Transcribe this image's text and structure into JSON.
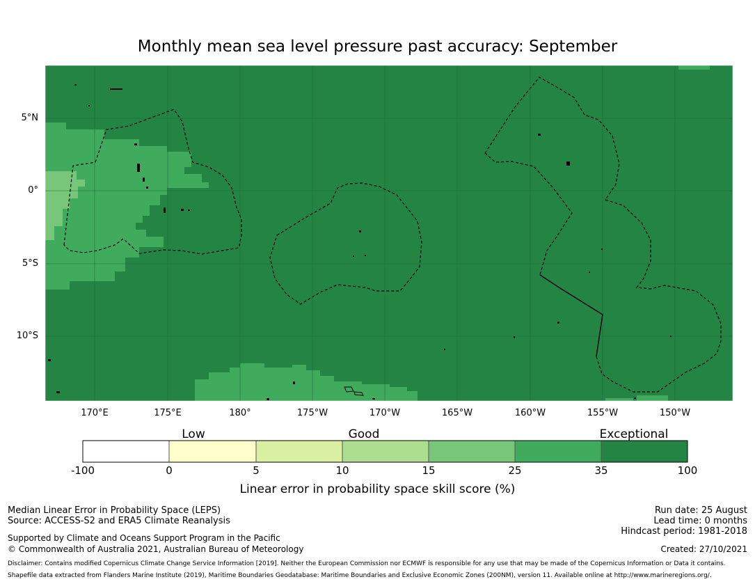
{
  "title": "Monthly mean sea level pressure past accuracy: September",
  "map": {
    "lat_labels": [
      "5°N",
      "0°",
      "5°S",
      "10°S"
    ],
    "lon_labels": [
      "170°E",
      "175°E",
      "180°",
      "175°W",
      "170°W",
      "165°W",
      "160°W",
      "155°W",
      "150°W"
    ],
    "colors": {
      "exceptional_dark": "#238443",
      "very_good": "#41ab5d",
      "good_plus": "#78c679",
      "gridline": "#1d6b36",
      "boundary": "#000000"
    }
  },
  "legend": {
    "categories": [
      "Low",
      "Good",
      "Exceptional"
    ],
    "ticks": [
      "-100",
      "0",
      "5",
      "10",
      "15",
      "25",
      "35",
      "100"
    ],
    "bins": [
      {
        "range": "-100 to 0",
        "color": "#ffffff"
      },
      {
        "range": "0 to 5",
        "color": "#ffffcc"
      },
      {
        "range": "5 to 10",
        "color": "#d9f0a3"
      },
      {
        "range": "10 to 15",
        "color": "#addd8e"
      },
      {
        "range": "15 to 25",
        "color": "#78c679"
      },
      {
        "range": "25 to 35",
        "color": "#41ab5d"
      },
      {
        "range": "35 to 100",
        "color": "#238443"
      }
    ],
    "caption": "Linear error in probability space skill score (%)"
  },
  "footer": {
    "line1": "Median Linear Error in Probability Space (LEPS)",
    "line2": "Source: ACCESS-S2 and ERA5 Climate Reanalysis",
    "line3": "Supported by Climate and Oceans Support Program in the Pacific",
    "line4": "© Commonwealth of Australia 2021, Australian Bureau of Meteorology",
    "run_date": "Run date: 25 August",
    "lead_time": "Lead time: 0 months",
    "hindcast": "Hindcast period: 1981-2018",
    "created": "Created: 27/10/2021",
    "disclaimer": "Disclaimer: Contains modified Copernicus Climate Change Service Information [2019]. Neither the European Commission nor ECMWF is responsible for any use that may be made of the Copernicus Information or Data it contains.",
    "shapefile": "Shapefile data extracted from Flanders Marine Institute (2019), Maritime Boundaries Geodatabase: Maritime Boundaries and Exclusive Economic Zones (200NM), version 11. Available online at http://www.marineregions.org/."
  }
}
